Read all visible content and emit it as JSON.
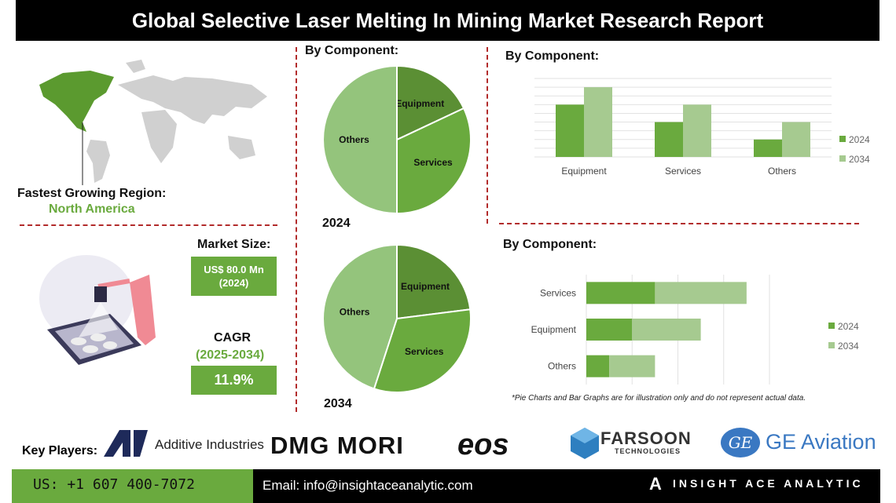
{
  "title": "Global Selective Laser Melting In Mining Market Research Report",
  "region": {
    "label": "Fastest Growing Region:",
    "value": "North America"
  },
  "market_size": {
    "label": "Market Size:",
    "value": "US$ 80.0 Mn",
    "year": "(2024)"
  },
  "cagr": {
    "label": "CAGR",
    "period": "(2025-2034)",
    "value": "11.9%"
  },
  "colors": {
    "dark_green": "#5b8f34",
    "mid_green": "#6aaa3e",
    "light_green": "#94c47c",
    "bar_light": "#a6ca90",
    "title_bg": "#000000",
    "divider": "#b22b2b"
  },
  "note": "*Pie Charts and Bar Graphs are for illustration only and do not represent actual data.",
  "key_players": {
    "label": "Key Players:",
    "companies": [
      "Additive Industries",
      "DMG MORI",
      "eos",
      "FARSOON",
      "TECHNOLOGIES",
      "GE Aviation"
    ]
  },
  "footer": {
    "phone": "US: +1 607 400-7072",
    "email": "Email: info@insightaceanalytic.com",
    "brand": "INSIGHT ACE ANALYTIC"
  },
  "chart_data": [
    {
      "type": "pie",
      "title": "By Component:",
      "label": "2024",
      "categories": [
        "Equipment",
        "Services",
        "Others"
      ],
      "values": [
        18,
        32,
        50
      ]
    },
    {
      "type": "pie",
      "label": "2034",
      "categories": [
        "Equipment",
        "Services",
        "Others"
      ],
      "values": [
        23,
        32,
        45
      ]
    },
    {
      "type": "bar",
      "title": "By Component:",
      "categories": [
        "Equipment",
        "Services",
        "Others"
      ],
      "series": [
        {
          "name": "2024",
          "values": [
            6,
            4,
            2
          ]
        },
        {
          "name": "2034",
          "values": [
            8,
            6,
            4
          ]
        }
      ],
      "ylim": [
        0,
        9
      ],
      "grid": true,
      "legend": "right"
    },
    {
      "type": "bar",
      "orientation": "horizontal",
      "stacked": true,
      "title": "By Component:",
      "categories": [
        "Services",
        "Equipment",
        "Others"
      ],
      "series": [
        {
          "name": "2024",
          "values": [
            1.5,
            1,
            0.5
          ]
        },
        {
          "name": "2034",
          "values": [
            2,
            1.5,
            1
          ]
        }
      ],
      "xlim": [
        0,
        4
      ],
      "grid": true,
      "legend": "right"
    }
  ]
}
